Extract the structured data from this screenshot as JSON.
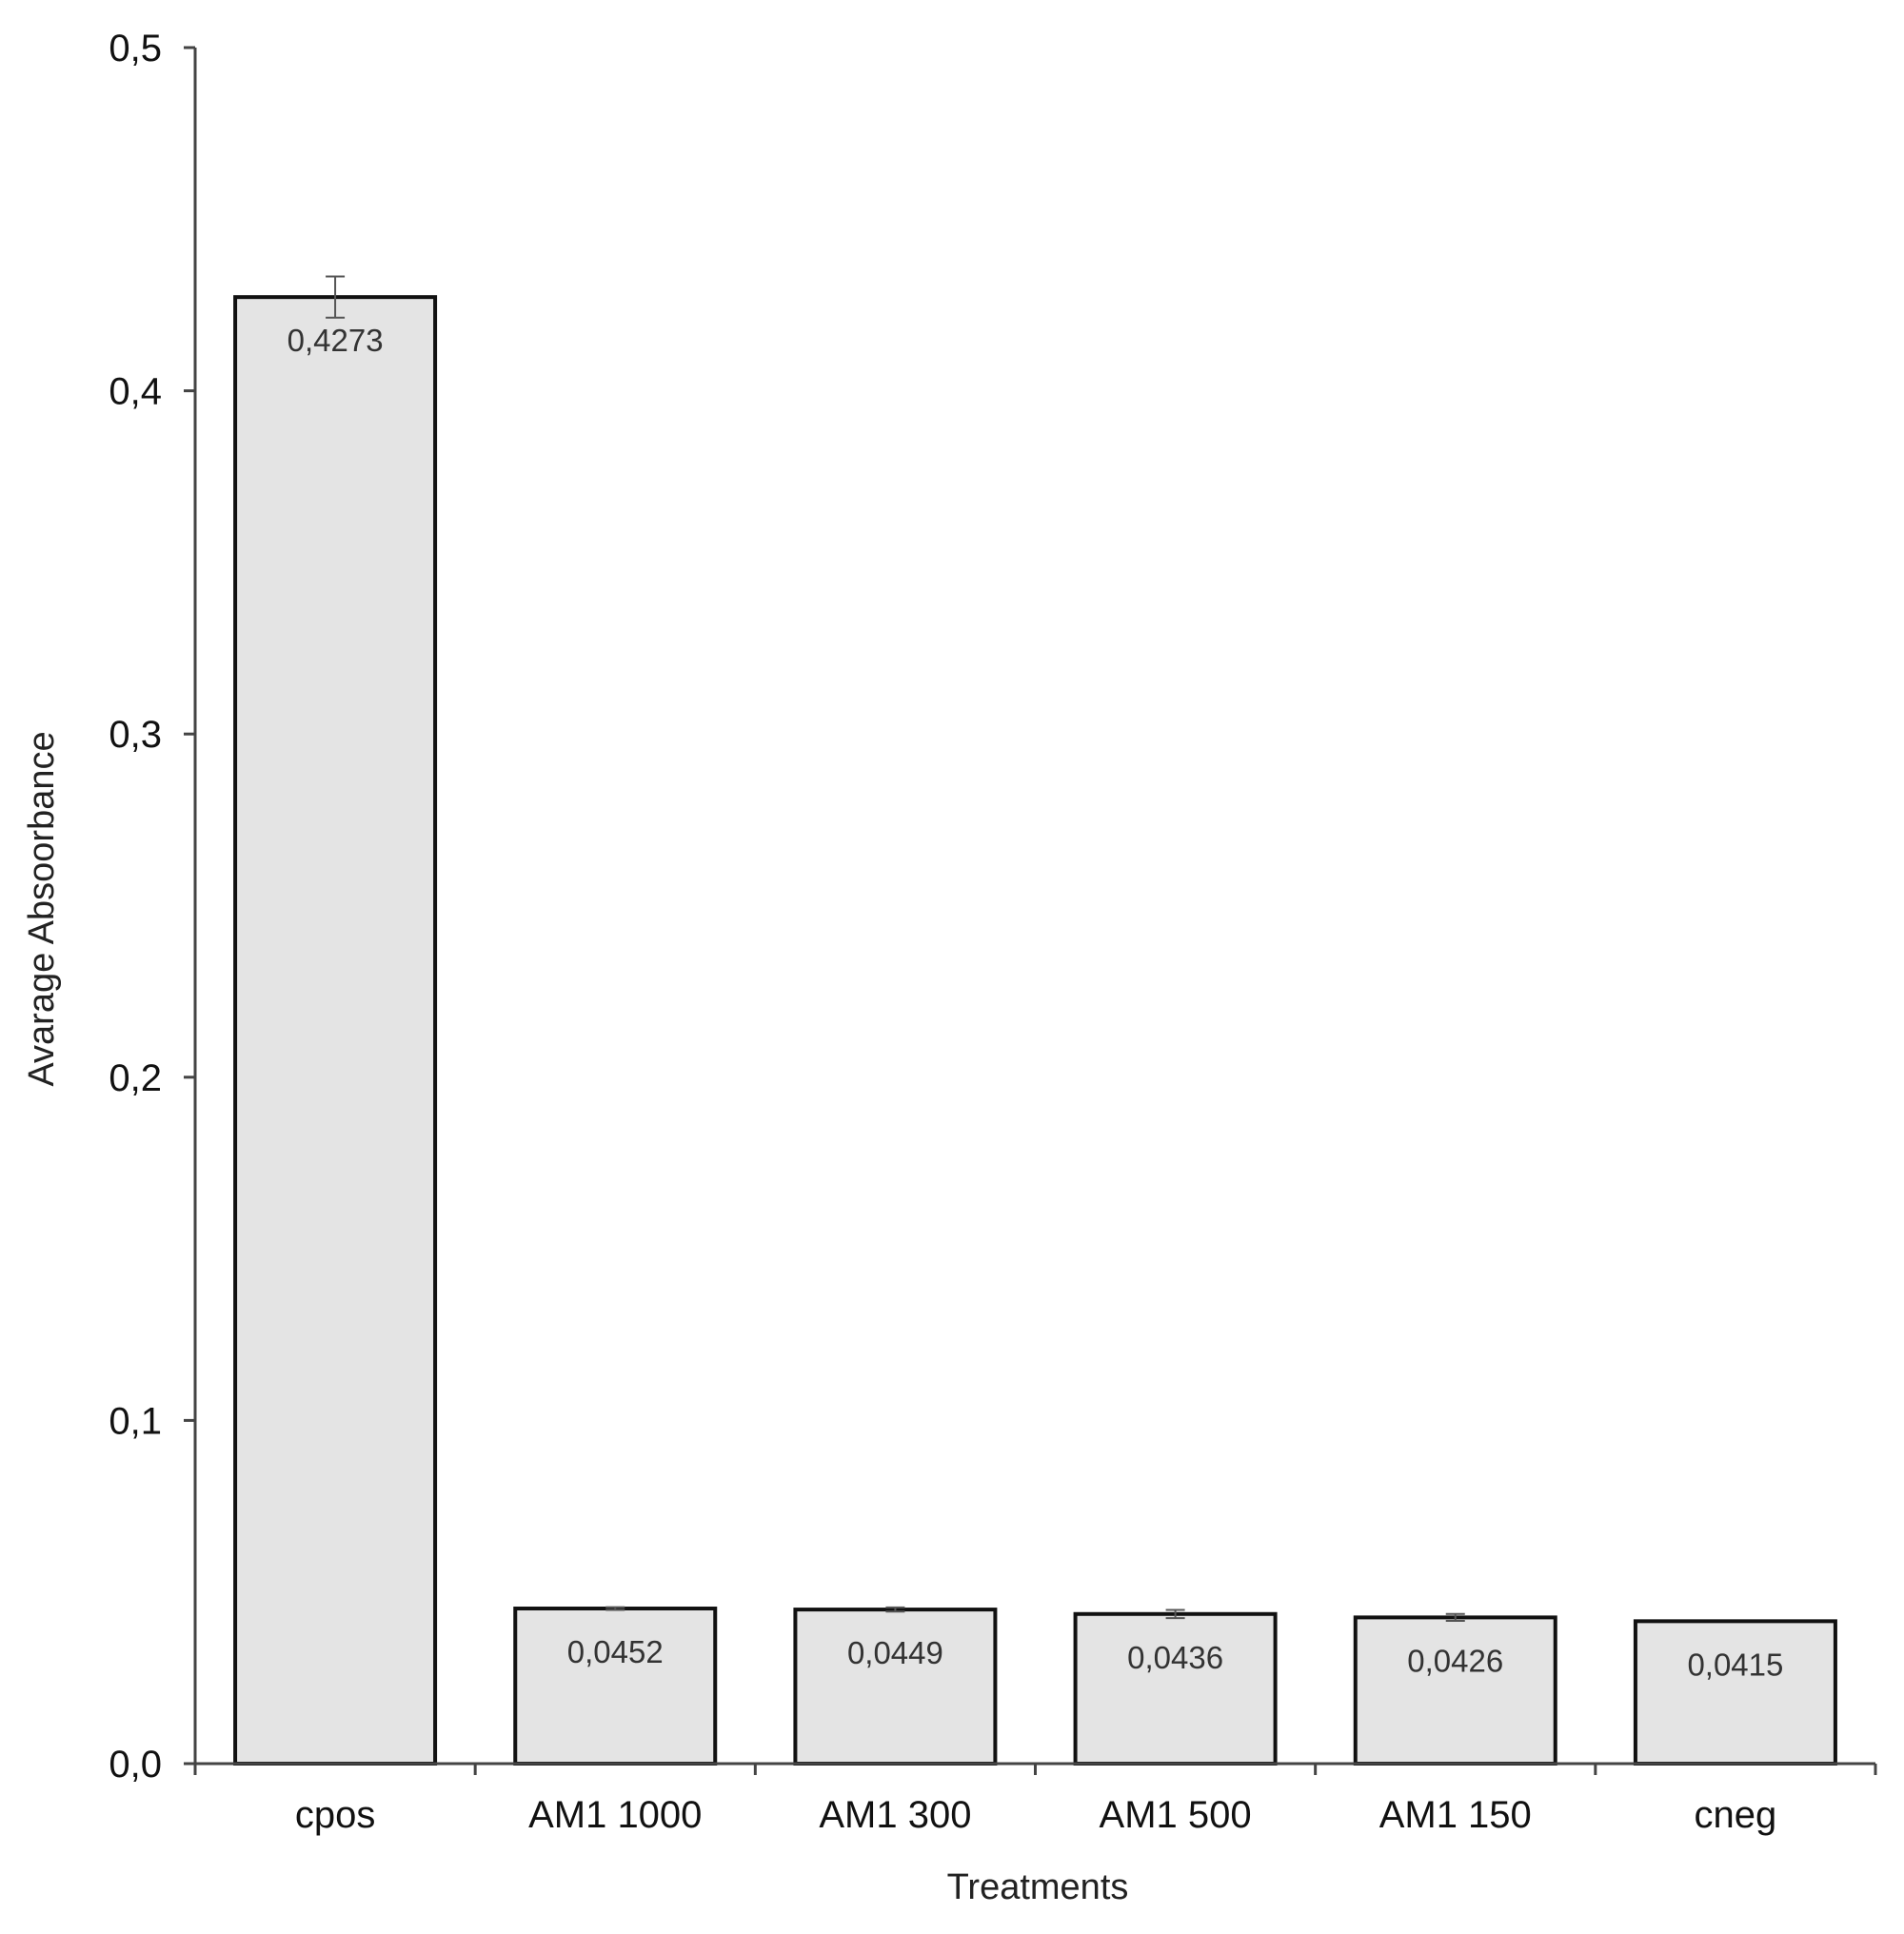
{
  "chart_data": {
    "type": "bar",
    "categories": [
      "cpos",
      "AM1 1000",
      "AM1 300",
      "AM1 500",
      "AM1 150",
      "cneg"
    ],
    "values": [
      0.4273,
      0.0452,
      0.0449,
      0.0436,
      0.0426,
      0.0415
    ],
    "value_labels": [
      "0,4273",
      "0,0452",
      "0,0449",
      "0,0436",
      "0,0426",
      "0,0415"
    ],
    "error": [
      0.006,
      0.0004,
      0.0006,
      0.0012,
      0.001,
      0.0
    ],
    "xlabel": "Treatments",
    "ylabel": "Avarage Absoorbance",
    "ylim": [
      0,
      0.5
    ],
    "yticks": [
      0,
      0.1,
      0.2,
      0.3,
      0.4,
      0.5
    ],
    "ytick_labels": [
      "0,0",
      "0,1",
      "0,2",
      "0,3",
      "0,4",
      "0,5"
    ],
    "grid": false,
    "legend": "none",
    "colors": {
      "bar_fill": "#e4e4e4",
      "bar_stroke": "#111111",
      "axis": "#444444",
      "error_bar": "#555555"
    }
  }
}
